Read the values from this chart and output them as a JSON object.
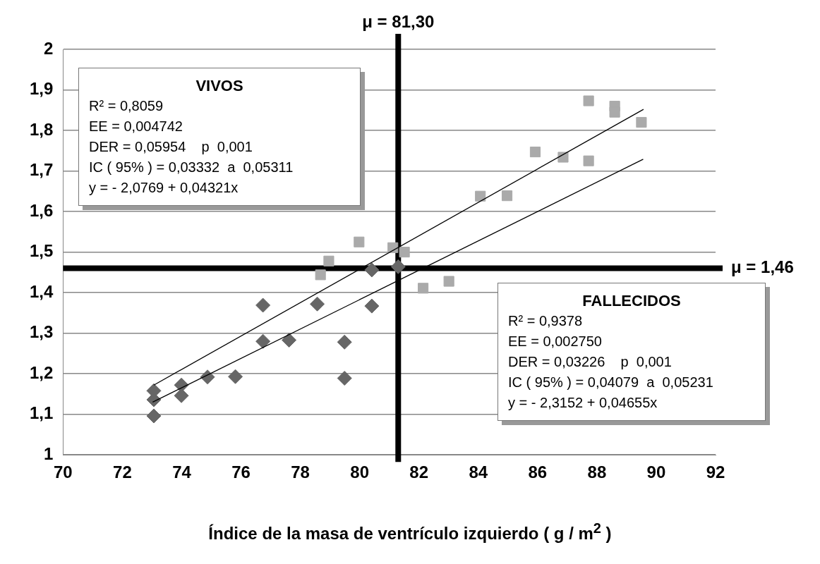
{
  "chart_data": {
    "type": "scatter",
    "xlabel": "Índice de la masa de ventrículo izquierdo ( g / m$^{2}$ )",
    "xlim": [
      70,
      92
    ],
    "xticks": [
      70,
      72,
      74,
      76,
      78,
      80,
      82,
      84,
      86,
      88,
      90,
      92
    ],
    "ylim": [
      1,
      2
    ],
    "yticks": [
      1,
      {
        "value": 1.1,
        "label": "1,1"
      },
      {
        "value": 1.2,
        "label": "1,2"
      },
      {
        "value": 1.3,
        "label": "1,3"
      },
      {
        "value": 1.4,
        "label": "1,4"
      },
      {
        "value": 1.5,
        "label": "1,5"
      },
      {
        "value": 1.6,
        "label": "1,6"
      },
      {
        "value": 1.7,
        "label": "1,7"
      },
      {
        "value": 1.8,
        "label": "1,8"
      },
      {
        "value": 1.9,
        "label": "1,9"
      },
      2
    ],
    "grid": "y",
    "legend": false,
    "series": [
      {
        "type": "scatter",
        "marker": "diamond",
        "color": "#666666",
        "x": [
          73.06,
          73.06,
          73.06,
          73.99,
          73.99,
          74.87,
          75.81,
          76.74,
          76.74,
          77.62,
          78.57,
          79.49,
          79.49,
          80.41,
          80.41,
          81.3
        ],
        "values": [
          1.158,
          1.136,
          1.096,
          1.172,
          1.146,
          1.192,
          1.193,
          1.369,
          1.28,
          1.283,
          1.372,
          1.278,
          1.189,
          1.456,
          1.367,
          1.464
        ]
      },
      {
        "type": "scatter",
        "marker": "square",
        "color": "#aaaaaa",
        "x": [
          78.68,
          78.96,
          79.98,
          81.12,
          81.51,
          82.14,
          83.01,
          84.07,
          84.97,
          85.92,
          86.86,
          87.72,
          87.72,
          88.6,
          88.6,
          89.5
        ],
        "values": [
          1.444,
          1.478,
          1.525,
          1.511,
          1.5,
          1.411,
          1.428,
          1.638,
          1.639,
          1.747,
          1.734,
          1.725,
          1.873,
          1.86,
          1.845,
          1.82
        ]
      },
      {
        "type": "line",
        "marker": "none",
        "color": "#000000",
        "x": [
          73.06,
          89.57
        ],
        "values": [
          1.172,
          1.852
        ]
      },
      {
        "type": "line",
        "marker": "none",
        "color": "#000000",
        "x": [
          73.02,
          89.56
        ],
        "values": [
          1.13,
          1.729
        ]
      }
    ],
    "ref_lines": [
      {
        "axis": "x",
        "value": 81.3,
        "label": "μ = 81,30",
        "color": "#000000"
      },
      {
        "axis": "y",
        "value": 1.46,
        "label": "μ = 1,46",
        "color": "#000000"
      }
    ],
    "annotations": [
      "VIVOS\nR² = 0,8059\nEE = 0,004742\nDER = 0,05954    p  0,001\nIC ( 95% ) = 0,03332  a  0,05311\ny = - 2,0769 + 0,04321x",
      "FALLECIDOS\nR² = 0,9378\nEE = 0,002750\nDER = 0,03226    p  0,001\nIC ( 95% ) = 0,04079  a  0,05231\ny = - 2,3152 + 0,04655x"
    ]
  }
}
